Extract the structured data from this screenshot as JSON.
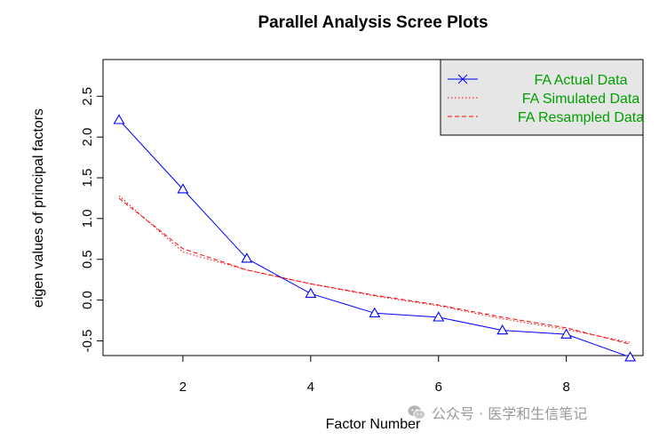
{
  "chart_data": {
    "type": "line",
    "title": "Parallel Analysis Scree Plots",
    "xlabel": "Factor Number",
    "ylabel": "eigen values of principal factors",
    "xlim": [
      0.75,
      9.2
    ],
    "ylim": [
      -0.68,
      2.95
    ],
    "x_ticks": [
      2,
      4,
      6,
      8
    ],
    "y_ticks": [
      -0.5,
      0.0,
      0.5,
      1.0,
      1.5,
      2.0,
      2.5
    ],
    "y_tick_labels": [
      "-0.5",
      "0.0",
      "0.5",
      "1.0",
      "1.5",
      "2.0",
      "2.5"
    ],
    "grid": false,
    "legend_position": "top-right",
    "x": [
      1,
      2,
      3,
      4,
      5,
      6,
      7,
      8,
      9
    ],
    "series": [
      {
        "name": "FA  Actual Data",
        "color": "#0000ff",
        "dash": "solid",
        "marker": "triangle",
        "values": [
          2.21,
          1.36,
          0.51,
          0.08,
          -0.16,
          -0.21,
          -0.37,
          -0.42,
          -0.7
        ]
      },
      {
        "name": "FA  Simulated Data",
        "color": "#ff0000",
        "dash": "dotted",
        "values": [
          1.28,
          0.59,
          0.37,
          0.2,
          0.05,
          -0.07,
          -0.23,
          -0.36,
          -0.52
        ]
      },
      {
        "name": "FA  Resampled Data",
        "color": "#ff0000",
        "dash": "dashed",
        "values": [
          1.25,
          0.63,
          0.37,
          0.2,
          0.06,
          -0.06,
          -0.21,
          -0.34,
          -0.54
        ]
      }
    ],
    "legend_text_color": "#00a000",
    "legend_background": "#e6e6e6"
  },
  "watermark": {
    "text": "公众号 · 医学和生信笔记",
    "icon": "wechat-icon"
  }
}
